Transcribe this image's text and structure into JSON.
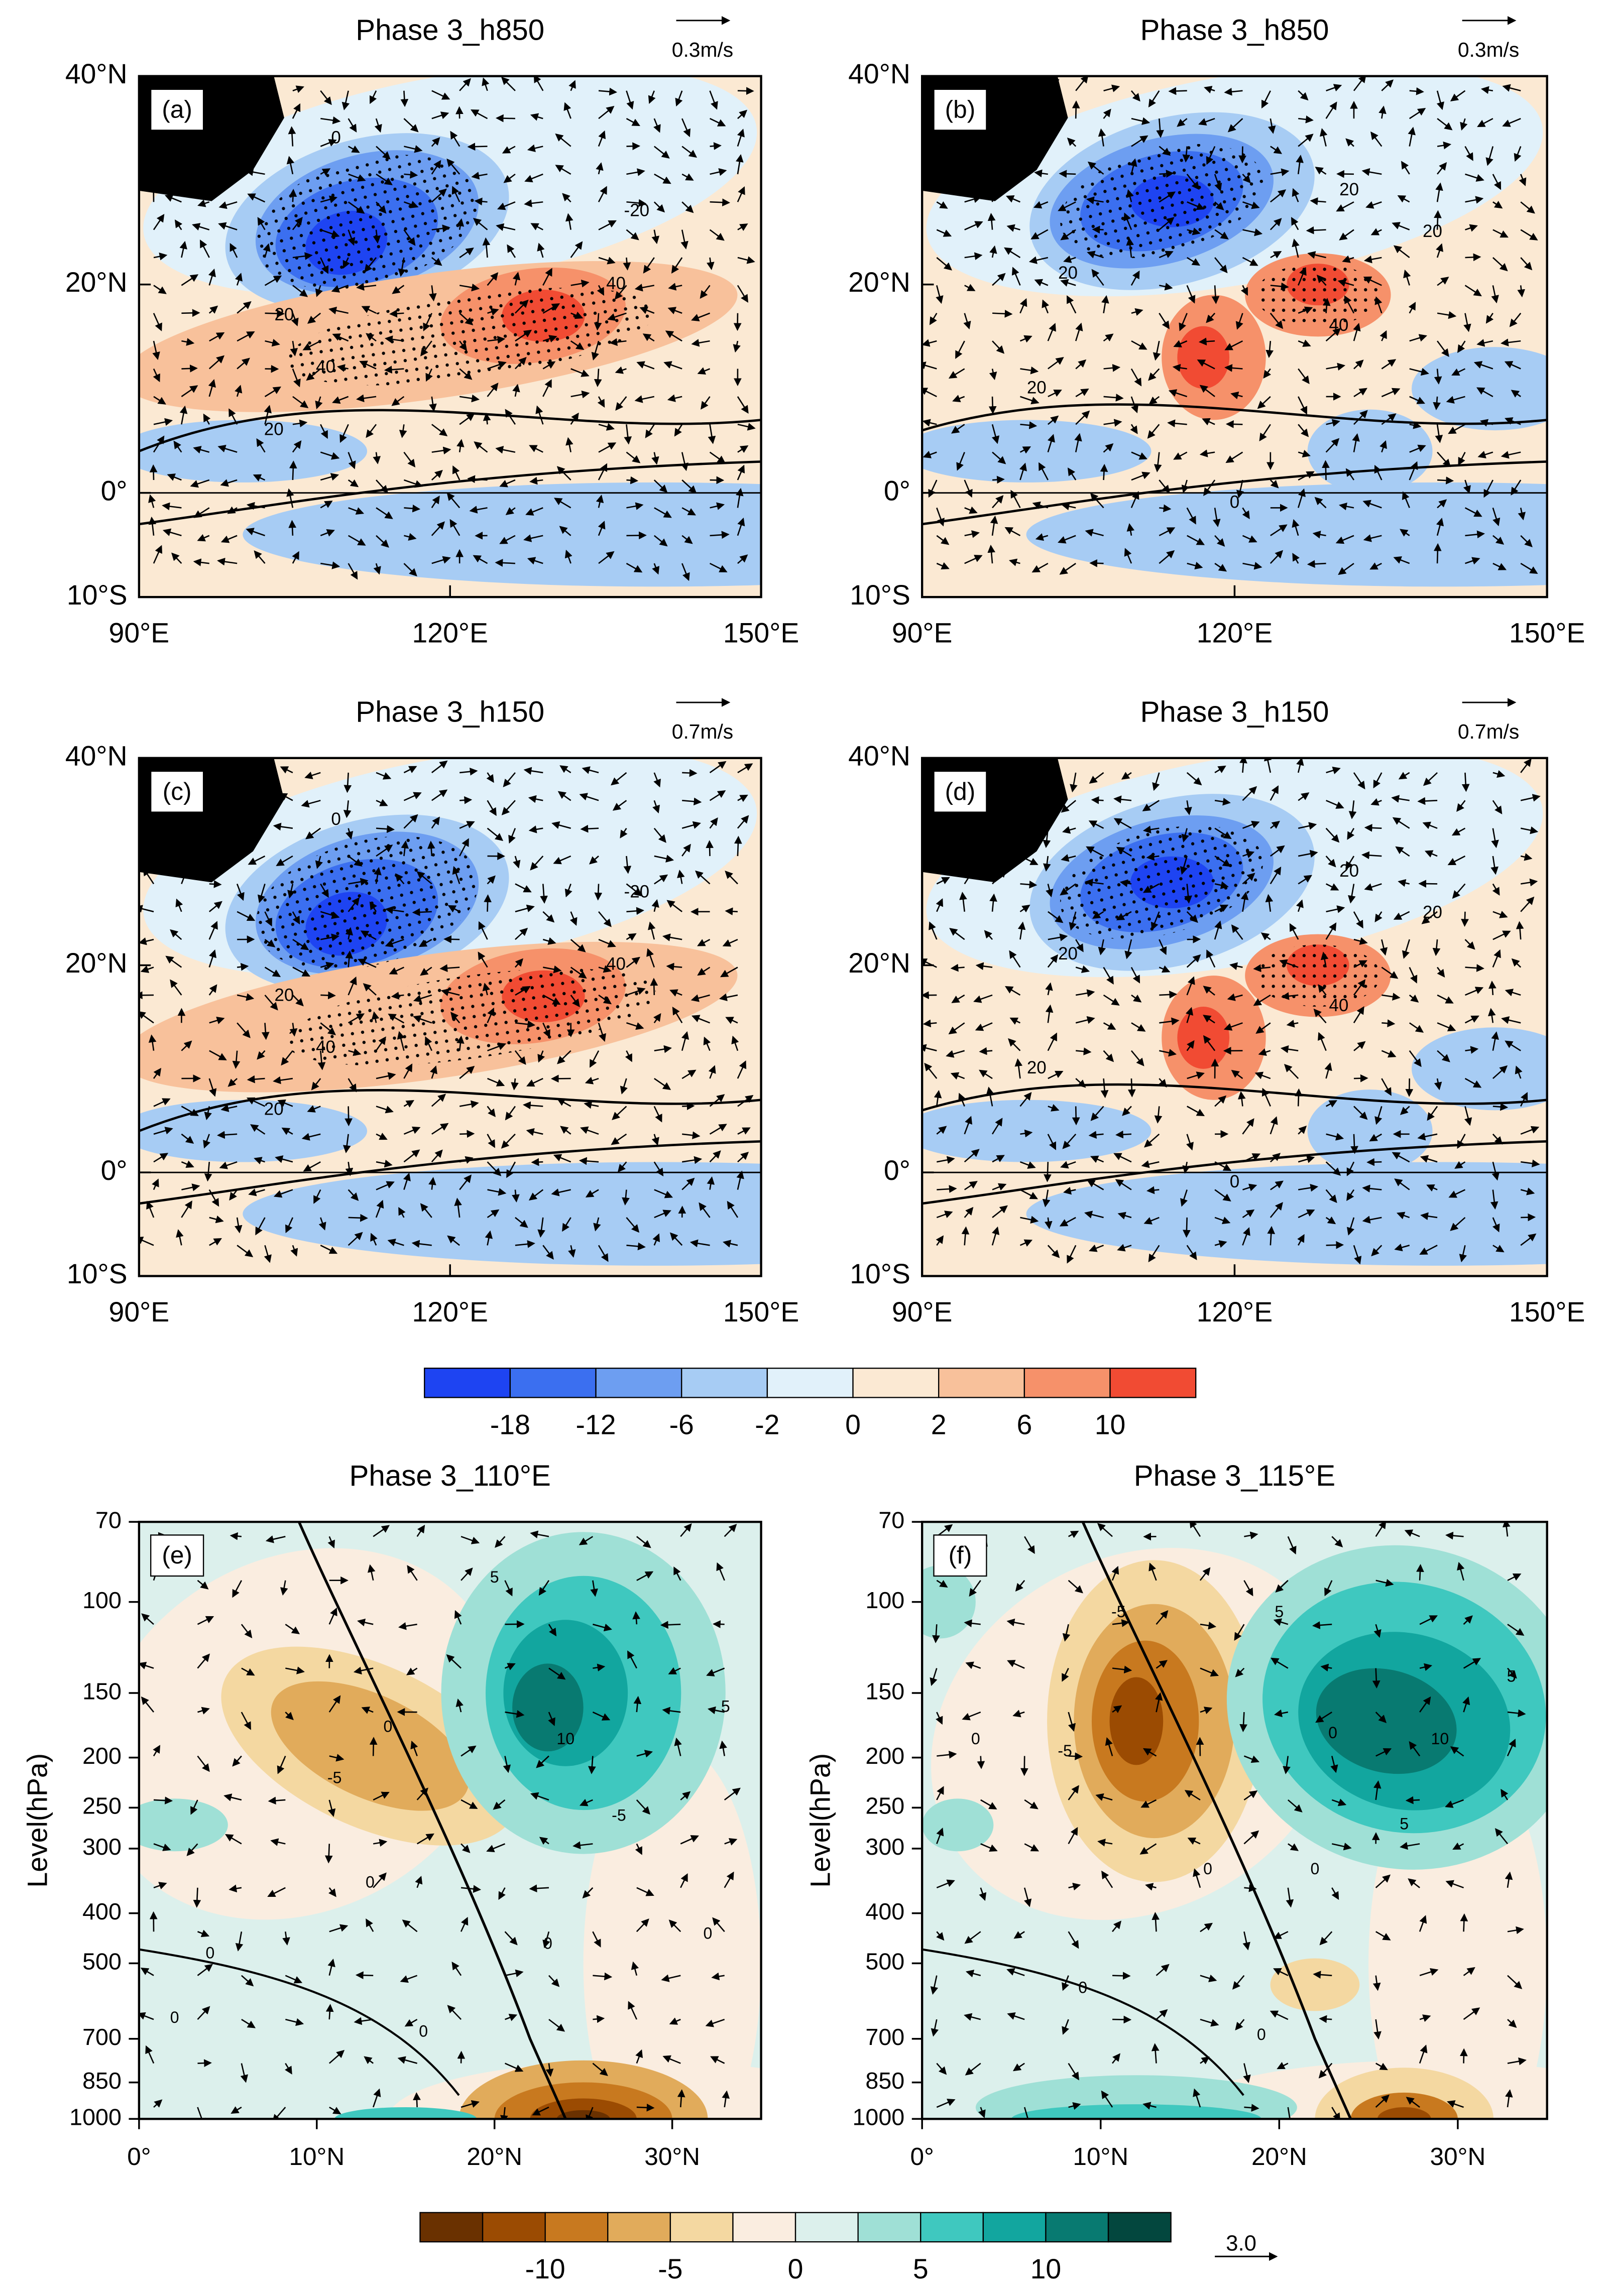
{
  "chart_data": [
    {
      "type": "map",
      "title": "Phase 3_h850",
      "panel_label": "(a)",
      "reference_vector": "0.3m/s",
      "xlim": [
        90,
        150
      ],
      "xticks": [
        {
          "value": 90,
          "label": "90°E"
        },
        {
          "value": 120,
          "label": "120°E"
        },
        {
          "value": 150,
          "label": "150°E"
        }
      ],
      "ylim": [
        -10,
        40
      ],
      "yticks": [
        {
          "value": -10,
          "label": "10°S"
        },
        {
          "value": 0,
          "label": "0°"
        },
        {
          "value": 20,
          "label": "20°N"
        },
        {
          "value": 40,
          "label": "40°N"
        }
      ],
      "contour_labels": [
        "0",
        "20",
        "40",
        "-20",
        "40",
        "20"
      ]
    },
    {
      "type": "map",
      "title": "Phase 3_h850",
      "panel_label": "(b)",
      "reference_vector": "0.3m/s",
      "xlim": [
        90,
        150
      ],
      "xticks": [
        {
          "value": 90,
          "label": "90°E"
        },
        {
          "value": 120,
          "label": "120°E"
        },
        {
          "value": 150,
          "label": "150°E"
        }
      ],
      "ylim": [
        -10,
        40
      ],
      "yticks": [
        {
          "value": -10,
          "label": "10°S"
        },
        {
          "value": 0,
          "label": "0°"
        },
        {
          "value": 20,
          "label": "20°N"
        },
        {
          "value": 40,
          "label": "40°N"
        }
      ],
      "contour_labels": [
        "20",
        "20",
        "40",
        "20",
        "20",
        "0"
      ]
    },
    {
      "type": "map",
      "title": "Phase 3_h150",
      "panel_label": "(c)",
      "reference_vector": "0.7m/s",
      "xlim": [
        90,
        150
      ],
      "xticks": [
        {
          "value": 90,
          "label": "90°E"
        },
        {
          "value": 120,
          "label": "120°E"
        },
        {
          "value": 150,
          "label": "150°E"
        }
      ],
      "ylim": [
        -10,
        40
      ],
      "yticks": [
        {
          "value": -10,
          "label": "10°S"
        },
        {
          "value": 0,
          "label": "0°"
        },
        {
          "value": 20,
          "label": "20°N"
        },
        {
          "value": 40,
          "label": "40°N"
        }
      ],
      "contour_labels": [
        "0",
        "20",
        "40",
        "-20",
        "40",
        "20"
      ]
    },
    {
      "type": "map",
      "title": "Phase 3_h150",
      "panel_label": "(d)",
      "reference_vector": "0.7m/s",
      "xlim": [
        90,
        150
      ],
      "xticks": [
        {
          "value": 90,
          "label": "90°E"
        },
        {
          "value": 120,
          "label": "120°E"
        },
        {
          "value": 150,
          "label": "150°E"
        }
      ],
      "ylim": [
        -10,
        40
      ],
      "yticks": [
        {
          "value": -10,
          "label": "10°S"
        },
        {
          "value": 0,
          "label": "0°"
        },
        {
          "value": 20,
          "label": "20°N"
        },
        {
          "value": 40,
          "label": "40°N"
        }
      ],
      "contour_labels": [
        "20",
        "20",
        "40",
        "20",
        "20",
        "0"
      ]
    },
    {
      "type": "colorbar",
      "ticks": [
        -18,
        -12,
        -6,
        -2,
        0,
        2,
        6,
        10
      ],
      "colors": [
        "#1e44f2",
        "#3b6ff0",
        "#6d9ef1",
        "#a7ccf4",
        "#e1f1fa",
        "#fbe9d3",
        "#f8c19b",
        "#f6916a",
        "#f14b33"
      ]
    },
    {
      "type": "section",
      "title": "Phase 3_110°E",
      "panel_label": "(e)",
      "ylabel": "Level(hPa)",
      "yscale": "log",
      "ylim": [
        1000,
        70
      ],
      "yticks": [
        70,
        100,
        150,
        200,
        250,
        300,
        400,
        500,
        700,
        850,
        1000
      ],
      "xlim": [
        0,
        35
      ],
      "xticks": [
        {
          "value": 0,
          "label": "0°"
        },
        {
          "value": 10,
          "label": "10°N"
        },
        {
          "value": 20,
          "label": "20°N"
        },
        {
          "value": 30,
          "label": "30°N"
        }
      ],
      "contour_labels": [
        "5",
        "10",
        "5",
        "-5",
        "0",
        "0",
        "0",
        "0",
        "0",
        "0",
        "-5",
        "0"
      ]
    },
    {
      "type": "section",
      "title": "Phase 3_115°E",
      "panel_label": "(f)",
      "ylabel": "Level(hPa)",
      "yscale": "log",
      "ylim": [
        1000,
        70
      ],
      "yticks": [
        70,
        100,
        150,
        200,
        250,
        300,
        400,
        500,
        700,
        850,
        1000
      ],
      "xlim": [
        0,
        35
      ],
      "xticks": [
        {
          "value": 0,
          "label": "0°"
        },
        {
          "value": 10,
          "label": "10°N"
        },
        {
          "value": 20,
          "label": "20°N"
        },
        {
          "value": 30,
          "label": "30°N"
        }
      ],
      "contour_labels": [
        "-5",
        "5",
        "5",
        "10",
        "5",
        "0",
        "-5",
        "0",
        "0",
        "0",
        "0",
        "0"
      ]
    },
    {
      "type": "colorbar",
      "lim": [
        -15,
        15
      ],
      "ticks": [
        -10,
        -5,
        0,
        5,
        10
      ],
      "reference_vector": "3.0",
      "colors": [
        "#6a3100",
        "#9b4b02",
        "#c8791f",
        "#e1ab5b",
        "#f4d8a1",
        "#faede0",
        "#dcf0ec",
        "#9fe0d6",
        "#3fc8bf",
        "#12a69f",
        "#087a71",
        "#03473e"
      ]
    }
  ]
}
